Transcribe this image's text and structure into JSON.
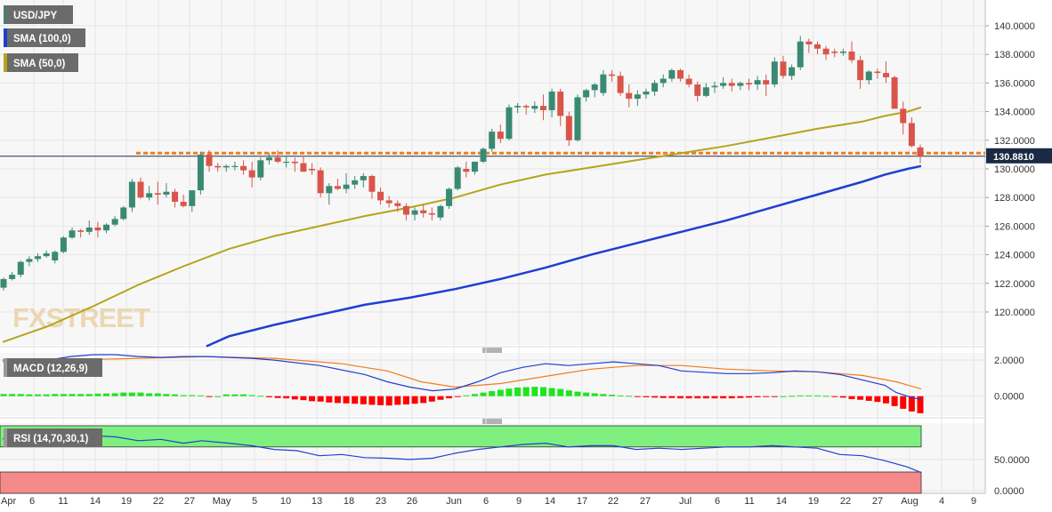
{
  "chart_data": {
    "type": "candlestick",
    "symbol": "USD/JPY",
    "legend": [
      {
        "label": "USD/JPY",
        "color": "#4a7c6f"
      },
      {
        "label": "SMA (100,0)",
        "color": "#1f3fd1"
      },
      {
        "label": "SMA (50,0)",
        "color": "#b5a41b"
      }
    ],
    "price_axis": {
      "ticks": [
        "140.0000",
        "138.0000",
        "136.0000",
        "134.0000",
        "132.0000",
        "130.0000",
        "128.0000",
        "126.0000",
        "124.0000",
        "122.0000",
        "120.0000"
      ],
      "tick_values": [
        140,
        138,
        136,
        134,
        132,
        130,
        128,
        126,
        124,
        122,
        120
      ],
      "ylim": [
        117.7,
        141.8
      ],
      "last_price_label": "130.8810",
      "last_price": 130.881
    },
    "horizontal_level": 131.1,
    "x_axis": {
      "labels": [
        "Apr",
        "6",
        "11",
        "14",
        "19",
        "22",
        "27",
        "May",
        "5",
        "10",
        "13",
        "18",
        "23",
        "26",
        "Jun",
        "6",
        "9",
        "14",
        "17",
        "22",
        "27",
        "Jul",
        "6",
        "11",
        "14",
        "19",
        "22",
        "27",
        "Aug",
        "4",
        "9"
      ]
    },
    "candles": [
      [
        121.7,
        122.4,
        121.5,
        122.3
      ],
      [
        122.3,
        122.8,
        122.2,
        122.6
      ],
      [
        122.6,
        123.6,
        122.4,
        123.5
      ],
      [
        123.5,
        123.9,
        123.2,
        123.7
      ],
      [
        123.7,
        124.1,
        123.5,
        123.9
      ],
      [
        123.9,
        124.3,
        123.8,
        124.1
      ],
      [
        123.6,
        124.3,
        123.4,
        124.2
      ],
      [
        124.2,
        125.3,
        124.1,
        125.2
      ],
      [
        125.2,
        125.9,
        125.1,
        125.7
      ],
      [
        125.7,
        125.8,
        125.2,
        125.6
      ],
      [
        125.6,
        126.4,
        125.4,
        125.9
      ],
      [
        125.9,
        126.3,
        125.2,
        125.7
      ],
      [
        125.7,
        126.2,
        125.5,
        126.1
      ],
      [
        126.1,
        126.7,
        126.0,
        126.5
      ],
      [
        126.5,
        127.4,
        126.4,
        127.3
      ],
      [
        127.3,
        129.3,
        127.0,
        129.1
      ],
      [
        129.1,
        129.4,
        127.9,
        128.0
      ],
      [
        128.0,
        128.8,
        127.8,
        128.3
      ],
      [
        128.3,
        129.1,
        127.5,
        128.2
      ],
      [
        128.2,
        129.0,
        128.0,
        128.4
      ],
      [
        128.4,
        128.6,
        127.3,
        127.7
      ],
      [
        127.7,
        128.2,
        127.3,
        127.4
      ],
      [
        127.4,
        128.5,
        127.0,
        128.5
      ],
      [
        128.5,
        131.2,
        128.2,
        131.0
      ],
      [
        131.0,
        131.3,
        129.8,
        130.2
      ],
      [
        130.2,
        130.4,
        129.8,
        130.1
      ],
      [
        130.1,
        130.3,
        129.8,
        130.2
      ],
      [
        130.2,
        130.5,
        129.9,
        130.2
      ],
      [
        130.2,
        130.6,
        129.6,
        129.9
      ],
      [
        129.9,
        130.5,
        128.7,
        129.4
      ],
      [
        129.4,
        130.8,
        129.2,
        130.6
      ],
      [
        130.6,
        131.1,
        130.3,
        130.8
      ],
      [
        130.8,
        131.3,
        130.4,
        130.5
      ],
      [
        130.5,
        130.9,
        130.1,
        130.5
      ],
      [
        130.5,
        130.8,
        129.8,
        130.4
      ],
      [
        130.4,
        130.9,
        129.9,
        129.8
      ],
      [
        130.0,
        130.4,
        129.6,
        129.9
      ],
      [
        129.9,
        130.1,
        128.0,
        128.3
      ],
      [
        128.3,
        129.0,
        127.5,
        128.8
      ],
      [
        128.8,
        129.3,
        128.5,
        128.6
      ],
      [
        128.6,
        129.7,
        128.3,
        128.9
      ],
      [
        128.9,
        129.5,
        128.6,
        129.2
      ],
      [
        129.2,
        129.7,
        128.7,
        129.5
      ],
      [
        129.5,
        129.6,
        127.9,
        128.4
      ],
      [
        128.4,
        128.7,
        127.5,
        127.8
      ],
      [
        127.8,
        128.1,
        127.3,
        127.6
      ],
      [
        127.6,
        127.8,
        127.0,
        127.4
      ],
      [
        127.4,
        127.6,
        126.4,
        126.8
      ],
      [
        126.8,
        127.3,
        126.4,
        127.1
      ],
      [
        127.1,
        127.5,
        126.6,
        126.9
      ],
      [
        126.9,
        127.3,
        126.4,
        126.8
      ],
      [
        126.6,
        127.5,
        126.4,
        127.4
      ],
      [
        127.4,
        128.7,
        127.2,
        128.6
      ],
      [
        128.6,
        130.2,
        128.5,
        130.1
      ],
      [
        130.0,
        130.5,
        129.4,
        129.8
      ],
      [
        129.8,
        130.5,
        129.6,
        130.5
      ],
      [
        130.5,
        131.5,
        130.4,
        131.4
      ],
      [
        131.4,
        132.8,
        131.2,
        132.6
      ],
      [
        132.6,
        133.1,
        131.8,
        132.1
      ],
      [
        132.1,
        134.5,
        132.0,
        134.3
      ],
      [
        134.3,
        134.6,
        133.9,
        134.4
      ],
      [
        134.4,
        134.5,
        133.8,
        134.3
      ],
      [
        134.2,
        134.7,
        133.9,
        134.4
      ],
      [
        134.4,
        135.2,
        133.4,
        134.1
      ],
      [
        134.1,
        135.6,
        133.6,
        135.4
      ],
      [
        135.4,
        135.6,
        133.0,
        133.7
      ],
      [
        133.7,
        134.0,
        131.6,
        132.0
      ],
      [
        132.0,
        135.2,
        131.9,
        135.0
      ],
      [
        135.0,
        135.6,
        134.7,
        135.5
      ],
      [
        135.5,
        136.0,
        135.0,
        135.9
      ],
      [
        135.3,
        136.9,
        135.1,
        136.6
      ],
      [
        136.6,
        136.9,
        136.1,
        136.5
      ],
      [
        136.5,
        136.8,
        135.1,
        135.3
      ],
      [
        135.3,
        135.9,
        134.3,
        134.9
      ],
      [
        134.9,
        135.5,
        134.4,
        135.2
      ],
      [
        135.2,
        135.6,
        134.9,
        135.4
      ],
      [
        135.4,
        136.2,
        135.1,
        136.0
      ],
      [
        136.0,
        136.6,
        135.7,
        136.3
      ],
      [
        136.3,
        137.0,
        136.1,
        136.9
      ],
      [
        136.9,
        137.0,
        136.1,
        136.3
      ],
      [
        136.3,
        136.6,
        135.7,
        135.9
      ],
      [
        135.9,
        136.1,
        134.7,
        135.1
      ],
      [
        135.1,
        136.0,
        135.0,
        135.7
      ],
      [
        135.7,
        136.1,
        135.3,
        135.8
      ],
      [
        135.8,
        136.4,
        135.6,
        136.0
      ],
      [
        136.0,
        136.3,
        135.4,
        135.8
      ],
      [
        135.8,
        136.1,
        135.5,
        136.0
      ],
      [
        136.0,
        136.3,
        135.5,
        135.9
      ],
      [
        135.9,
        136.5,
        135.5,
        136.2
      ],
      [
        136.2,
        136.6,
        135.1,
        135.9
      ],
      [
        135.9,
        137.8,
        135.7,
        137.5
      ],
      [
        137.5,
        137.9,
        136.3,
        136.5
      ],
      [
        136.5,
        137.3,
        136.2,
        137.1
      ],
      [
        137.1,
        139.3,
        136.9,
        138.9
      ],
      [
        138.9,
        139.1,
        138.1,
        138.7
      ],
      [
        138.7,
        138.9,
        138.0,
        138.4
      ],
      [
        138.4,
        138.6,
        137.6,
        138.0
      ],
      [
        138.2,
        138.4,
        137.8,
        138.1
      ],
      [
        138.1,
        138.4,
        137.9,
        138.2
      ],
      [
        138.2,
        138.9,
        137.4,
        137.6
      ],
      [
        137.6,
        137.9,
        135.6,
        136.2
      ],
      [
        136.2,
        136.9,
        135.9,
        136.8
      ],
      [
        136.8,
        137.0,
        136.3,
        136.7
      ],
      [
        136.7,
        137.5,
        136.0,
        136.4
      ],
      [
        136.4,
        136.5,
        134.3,
        134.2
      ],
      [
        134.2,
        134.7,
        132.4,
        133.2
      ],
      [
        133.2,
        133.6,
        131.5,
        131.6
      ],
      [
        131.5,
        131.7,
        130.4,
        130.88
      ]
    ],
    "sma50": [
      [
        0,
        117.9
      ],
      [
        20,
        119.0
      ],
      [
        40,
        120.4
      ],
      [
        60,
        121.9
      ],
      [
        80,
        123.2
      ],
      [
        100,
        124.4
      ],
      [
        120,
        125.3
      ],
      [
        140,
        126.0
      ],
      [
        160,
        126.7
      ],
      [
        180,
        127.3
      ],
      [
        200,
        128.0
      ],
      [
        220,
        128.9
      ],
      [
        240,
        129.6
      ],
      [
        260,
        130.1
      ],
      [
        280,
        130.6
      ],
      [
        300,
        131.1
      ],
      [
        320,
        131.6
      ],
      [
        340,
        132.2
      ],
      [
        360,
        132.8
      ],
      [
        380,
        133.3
      ],
      [
        390,
        133.7
      ],
      [
        400,
        134.0
      ],
      [
        406,
        134.3
      ]
    ],
    "sma100": [
      [
        90,
        117.6
      ],
      [
        100,
        118.3
      ],
      [
        120,
        119.1
      ],
      [
        140,
        119.8
      ],
      [
        160,
        120.5
      ],
      [
        180,
        121.0
      ],
      [
        200,
        121.6
      ],
      [
        220,
        122.3
      ],
      [
        240,
        123.1
      ],
      [
        260,
        124.0
      ],
      [
        280,
        124.8
      ],
      [
        300,
        125.6
      ],
      [
        320,
        126.4
      ],
      [
        340,
        127.3
      ],
      [
        360,
        128.2
      ],
      [
        380,
        129.1
      ],
      [
        390,
        129.6
      ],
      [
        400,
        130.0
      ],
      [
        406,
        130.2
      ]
    ],
    "macd": {
      "label": "MACD (12,26,9)",
      "ticks": [
        "2.0000",
        "0.0000"
      ],
      "tick_values": [
        2,
        0
      ],
      "ylim": [
        -1.1,
        2.4
      ],
      "macd_line": [
        [
          0,
          2.0
        ],
        [
          20,
          2.0
        ],
        [
          30,
          2.2
        ],
        [
          40,
          2.3
        ],
        [
          50,
          2.3
        ],
        [
          60,
          2.2
        ],
        [
          70,
          2.15
        ],
        [
          80,
          2.2
        ],
        [
          90,
          2.2
        ],
        [
          100,
          2.15
        ],
        [
          110,
          2.1
        ],
        [
          120,
          2.0
        ],
        [
          140,
          1.7
        ],
        [
          160,
          1.2
        ],
        [
          170,
          0.8
        ],
        [
          180,
          0.5
        ],
        [
          190,
          0.3
        ],
        [
          200,
          0.4
        ],
        [
          210,
          0.8
        ],
        [
          220,
          1.3
        ],
        [
          230,
          1.6
        ],
        [
          240,
          1.8
        ],
        [
          250,
          1.7
        ],
        [
          260,
          1.8
        ],
        [
          270,
          1.9
        ],
        [
          280,
          1.8
        ],
        [
          290,
          1.7
        ],
        [
          300,
          1.4
        ],
        [
          320,
          1.25
        ],
        [
          330,
          1.25
        ],
        [
          340,
          1.3
        ],
        [
          350,
          1.4
        ],
        [
          360,
          1.35
        ],
        [
          370,
          1.2
        ],
        [
          380,
          0.9
        ],
        [
          390,
          0.6
        ],
        [
          395,
          0.2
        ],
        [
          400,
          0.0
        ],
        [
          406,
          -0.2
        ]
      ],
      "signal_line": [
        [
          0,
          1.9
        ],
        [
          30,
          2.0
        ],
        [
          60,
          2.1
        ],
        [
          90,
          2.2
        ],
        [
          120,
          2.1
        ],
        [
          150,
          1.8
        ],
        [
          170,
          1.4
        ],
        [
          185,
          0.8
        ],
        [
          200,
          0.5
        ],
        [
          220,
          0.7
        ],
        [
          240,
          1.1
        ],
        [
          260,
          1.5
        ],
        [
          280,
          1.7
        ],
        [
          300,
          1.7
        ],
        [
          320,
          1.5
        ],
        [
          340,
          1.4
        ],
        [
          360,
          1.35
        ],
        [
          380,
          1.15
        ],
        [
          395,
          0.8
        ],
        [
          406,
          0.4
        ]
      ],
      "histogram": [
        0.12,
        0.12,
        0.12,
        0.1,
        0.1,
        0.1,
        0.12,
        0.12,
        0.12,
        0.12,
        0.12,
        0.14,
        0.15,
        0.16,
        0.2,
        0.2,
        0.2,
        0.16,
        0.16,
        0.12,
        0.1,
        0.06,
        0.06,
        0.04,
        -0.02,
        0.0,
        0.1,
        0.1,
        0.1,
        0.06,
        0.02,
        -0.06,
        -0.1,
        -0.12,
        -0.18,
        -0.22,
        -0.28,
        -0.3,
        -0.35,
        -0.38,
        -0.4,
        -0.42,
        -0.45,
        -0.48,
        -0.5,
        -0.52,
        -0.48,
        -0.46,
        -0.42,
        -0.38,
        -0.3,
        -0.2,
        -0.12,
        -0.04,
        0.05,
        0.12,
        0.2,
        0.28,
        0.35,
        0.42,
        0.48,
        0.5,
        0.52,
        0.5,
        0.45,
        0.4,
        0.32,
        0.25,
        0.2,
        0.16,
        0.12,
        0.08,
        0.04,
        0.02,
        -0.02,
        -0.06,
        -0.08,
        -0.1,
        -0.1,
        -0.12,
        -0.12,
        -0.12,
        -0.12,
        -0.12,
        -0.12,
        -0.12,
        -0.1,
        -0.08,
        -0.06,
        -0.04,
        -0.02,
        0.0,
        0.02,
        0.04,
        0.04,
        0.04,
        0.02,
        -0.02,
        -0.08,
        -0.16,
        -0.2,
        -0.26,
        -0.32,
        -0.4,
        -0.55,
        -0.7,
        -0.85,
        -0.95
      ]
    },
    "rsi": {
      "label": "RSI (14,70,30,1)",
      "ticks": [
        "50.0000",
        "0.0000"
      ],
      "tick_values": [
        50,
        0
      ],
      "ylim": [
        -4,
        108
      ],
      "overbought": 70,
      "oversold": 30,
      "line": [
        [
          0,
          83
        ],
        [
          20,
          84
        ],
        [
          40,
          88
        ],
        [
          50,
          86
        ],
        [
          60,
          80
        ],
        [
          70,
          82
        ],
        [
          80,
          76
        ],
        [
          88,
          80
        ],
        [
          100,
          76
        ],
        [
          110,
          72
        ],
        [
          120,
          66
        ],
        [
          130,
          64
        ],
        [
          140,
          56
        ],
        [
          150,
          58
        ],
        [
          160,
          53
        ],
        [
          170,
          52
        ],
        [
          180,
          50
        ],
        [
          190,
          52
        ],
        [
          200,
          60
        ],
        [
          210,
          66
        ],
        [
          220,
          70
        ],
        [
          230,
          74
        ],
        [
          240,
          76
        ],
        [
          250,
          70
        ],
        [
          260,
          72
        ],
        [
          270,
          72
        ],
        [
          280,
          66
        ],
        [
          290,
          68
        ],
        [
          300,
          66
        ],
        [
          310,
          68
        ],
        [
          320,
          70
        ],
        [
          330,
          70
        ],
        [
          340,
          72
        ],
        [
          350,
          70
        ],
        [
          360,
          68
        ],
        [
          370,
          58
        ],
        [
          380,
          56
        ],
        [
          390,
          48
        ],
        [
          400,
          38
        ],
        [
          406,
          29
        ]
      ]
    }
  },
  "watermark": "FXSTREET"
}
